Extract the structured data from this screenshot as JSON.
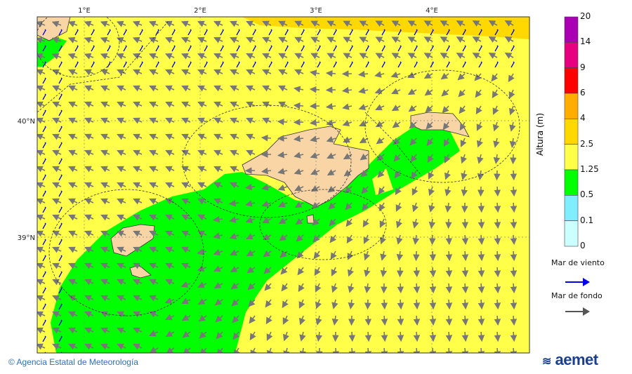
{
  "map": {
    "lon_ticks": [
      "1°E",
      "2°E",
      "3°E",
      "4°E"
    ],
    "lat_ticks": [
      "40°N",
      "39°N"
    ],
    "colors": {
      "sea_default": "#ffff4a",
      "land": "#f9d5a5",
      "border": "#333333",
      "wind_sea_arrow": "#0000ee",
      "swell_arrow": "#777777"
    }
  },
  "colorbar": {
    "title": "Altura (m)",
    "levels": [
      "20",
      "14",
      "9",
      "6",
      "4",
      "2.5",
      "1.25",
      "0.5",
      "0.1",
      "0"
    ],
    "colors": [
      "#aa00b4",
      "#e6007f",
      "#ff0000",
      "#ffae00",
      "#ffd800",
      "#ffff4a",
      "#00ff00",
      "#80eeff",
      "#ccffff"
    ]
  },
  "legend": {
    "wind_sea": "Mar de viento",
    "swell": "Mar de fondo"
  },
  "footer": {
    "copyright": "© Agencia Estatal de Meteorología",
    "logo_text": "aemet"
  }
}
